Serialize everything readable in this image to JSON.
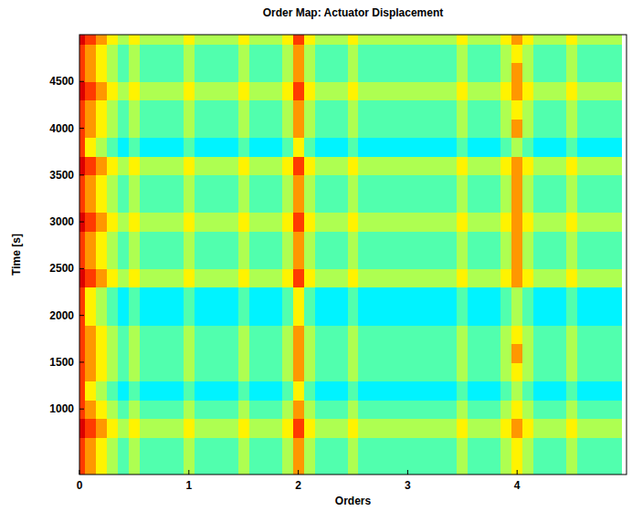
{
  "chart_data": {
    "type": "heatmap",
    "title": "Order Map: Actuator Displacement",
    "x_label": "Orders",
    "y_label": "Time [s]",
    "xlim": [
      0,
      5
    ],
    "ylim": [
      300,
      5000
    ],
    "xticks": [
      0,
      1,
      2,
      3,
      4
    ],
    "yticks": [
      1000,
      1500,
      2000,
      2500,
      3000,
      3500,
      4000,
      4500
    ],
    "zlim": [
      -1,
      10
    ],
    "x": [
      0,
      0.1,
      0.2,
      0.3,
      0.4,
      0.5,
      0.6,
      0.7,
      0.8,
      0.9,
      1,
      1.1,
      1.2,
      1.3,
      1.4,
      1.5,
      1.6,
      1.7,
      1.8,
      1.9,
      2,
      2.1,
      2.2,
      2.3,
      2.4,
      2.5,
      2.6,
      2.7,
      2.8,
      2.9,
      3,
      3.1,
      3.2,
      3.3,
      3.4,
      3.5,
      3.6,
      3.7,
      3.8,
      3.9,
      4,
      4.1,
      4.2,
      4.3,
      4.4,
      4.5,
      4.6,
      4.7,
      4.8,
      4.9
    ],
    "y": [
      400,
      600,
      800,
      1000,
      1200,
      1400,
      1600,
      1800,
      2000,
      2200,
      2400,
      2600,
      2800,
      3000,
      3200,
      3400,
      3600,
      3800,
      4000,
      4200,
      4400,
      4600,
      4800,
      5000
    ],
    "z": [
      [
        8,
        7,
        6,
        5,
        4,
        5,
        4,
        4,
        4,
        4,
        5,
        4,
        4,
        4,
        4,
        5,
        4,
        4,
        4,
        5,
        7,
        5,
        4,
        4,
        4,
        5,
        4,
        4,
        4,
        4,
        4,
        4,
        4,
        4,
        4,
        5,
        4,
        4,
        4,
        5,
        6,
        5,
        4,
        4,
        4,
        5,
        4,
        4,
        4,
        4
      ],
      [
        8,
        7,
        6,
        5,
        4,
        5,
        4,
        4,
        4,
        4,
        5,
        4,
        4,
        4,
        4,
        5,
        4,
        4,
        4,
        5,
        7,
        5,
        4,
        4,
        4,
        5,
        4,
        4,
        4,
        4,
        4,
        4,
        4,
        4,
        4,
        5,
        4,
        4,
        4,
        5,
        6,
        5,
        4,
        4,
        4,
        5,
        4,
        4,
        4,
        4
      ],
      [
        9,
        8,
        7,
        6,
        5,
        6,
        5,
        5,
        5,
        5,
        6,
        5,
        5,
        5,
        5,
        6,
        5,
        5,
        5,
        6,
        8,
        6,
        5,
        5,
        5,
        6,
        5,
        5,
        5,
        5,
        5,
        5,
        5,
        5,
        5,
        6,
        5,
        5,
        5,
        6,
        7,
        6,
        5,
        5,
        5,
        6,
        5,
        5,
        5,
        5
      ],
      [
        8,
        7,
        6,
        5,
        4,
        5,
        4,
        4,
        4,
        4,
        5,
        4,
        4,
        4,
        4,
        5,
        4,
        4,
        4,
        5,
        7,
        5,
        4,
        4,
        4,
        5,
        4,
        4,
        4,
        4,
        4,
        4,
        4,
        4,
        4,
        5,
        4,
        4,
        4,
        5,
        6,
        5,
        4,
        4,
        4,
        5,
        4,
        4,
        4,
        4
      ],
      [
        8,
        6,
        5,
        4,
        3,
        4,
        3,
        3,
        3,
        3,
        4,
        3,
        3,
        3,
        3,
        4,
        3,
        3,
        3,
        4,
        6,
        4,
        3,
        3,
        3,
        4,
        3,
        3,
        3,
        3,
        3,
        3,
        3,
        3,
        3,
        4,
        3,
        3,
        3,
        4,
        5,
        4,
        3,
        3,
        3,
        4,
        3,
        3,
        3,
        3
      ],
      [
        8,
        7,
        6,
        5,
        4,
        5,
        4,
        4,
        4,
        4,
        5,
        4,
        4,
        4,
        4,
        5,
        4,
        4,
        4,
        5,
        7,
        5,
        4,
        4,
        4,
        5,
        4,
        4,
        4,
        4,
        4,
        4,
        4,
        4,
        4,
        5,
        4,
        4,
        4,
        5,
        6,
        5,
        4,
        4,
        4,
        5,
        4,
        4,
        4,
        4
      ],
      [
        8,
        7,
        6,
        5,
        4,
        5,
        4,
        4,
        4,
        4,
        5,
        4,
        4,
        4,
        4,
        5,
        4,
        4,
        4,
        5,
        7,
        5,
        4,
        4,
        4,
        5,
        4,
        4,
        4,
        4,
        4,
        4,
        4,
        4,
        4,
        5,
        4,
        4,
        4,
        5,
        7,
        5,
        4,
        4,
        4,
        5,
        4,
        4,
        4,
        4
      ],
      [
        8,
        7,
        6,
        5,
        4,
        5,
        4,
        4,
        4,
        4,
        5,
        4,
        4,
        4,
        4,
        5,
        4,
        4,
        4,
        5,
        7,
        5,
        4,
        4,
        4,
        5,
        4,
        4,
        4,
        4,
        4,
        4,
        4,
        4,
        4,
        5,
        4,
        4,
        4,
        5,
        6,
        5,
        4,
        4,
        4,
        5,
        4,
        4,
        4,
        4
      ],
      [
        8,
        6,
        5,
        4,
        3,
        4,
        3,
        3,
        3,
        3,
        4,
        3,
        3,
        3,
        3,
        4,
        3,
        3,
        3,
        4,
        6,
        4,
        3,
        3,
        3,
        4,
        3,
        3,
        3,
        3,
        3,
        3,
        3,
        3,
        3,
        4,
        3,
        3,
        3,
        4,
        5,
        4,
        3,
        3,
        3,
        4,
        3,
        3,
        3,
        3
      ],
      [
        8,
        6,
        5,
        4,
        3,
        4,
        3,
        3,
        3,
        3,
        4,
        3,
        3,
        3,
        3,
        4,
        3,
        3,
        3,
        4,
        6,
        4,
        3,
        3,
        3,
        4,
        3,
        3,
        3,
        3,
        3,
        3,
        3,
        3,
        3,
        4,
        3,
        3,
        3,
        4,
        5,
        4,
        3,
        3,
        3,
        4,
        3,
        3,
        3,
        3
      ],
      [
        9,
        8,
        7,
        6,
        5,
        6,
        5,
        5,
        5,
        5,
        6,
        5,
        5,
        5,
        5,
        6,
        5,
        5,
        5,
        6,
        8,
        6,
        5,
        5,
        5,
        6,
        5,
        5,
        5,
        5,
        5,
        5,
        5,
        5,
        5,
        6,
        5,
        5,
        5,
        6,
        7,
        6,
        5,
        5,
        5,
        6,
        5,
        5,
        5,
        5
      ],
      [
        8,
        7,
        6,
        5,
        4,
        5,
        4,
        4,
        4,
        4,
        5,
        4,
        4,
        4,
        4,
        5,
        4,
        4,
        4,
        5,
        7,
        5,
        4,
        4,
        4,
        5,
        4,
        4,
        4,
        4,
        4,
        4,
        4,
        4,
        4,
        5,
        4,
        4,
        4,
        5,
        7,
        5,
        4,
        4,
        4,
        5,
        4,
        4,
        4,
        4
      ],
      [
        8,
        7,
        6,
        5,
        4,
        5,
        4,
        4,
        4,
        4,
        5,
        4,
        4,
        4,
        4,
        5,
        4,
        4,
        4,
        5,
        7,
        5,
        4,
        4,
        4,
        5,
        4,
        4,
        4,
        4,
        4,
        4,
        4,
        4,
        4,
        5,
        4,
        4,
        4,
        5,
        7,
        5,
        4,
        4,
        4,
        5,
        4,
        4,
        4,
        4
      ],
      [
        9,
        8,
        7,
        6,
        5,
        6,
        5,
        5,
        5,
        5,
        6,
        5,
        5,
        5,
        5,
        6,
        5,
        5,
        5,
        6,
        8,
        6,
        5,
        5,
        5,
        6,
        5,
        5,
        5,
        5,
        5,
        5,
        5,
        5,
        5,
        6,
        5,
        5,
        5,
        6,
        7,
        6,
        5,
        5,
        5,
        6,
        5,
        5,
        5,
        5
      ],
      [
        8,
        7,
        6,
        5,
        4,
        5,
        4,
        4,
        4,
        4,
        5,
        4,
        4,
        4,
        4,
        5,
        4,
        4,
        4,
        5,
        7,
        5,
        4,
        4,
        4,
        5,
        4,
        4,
        4,
        4,
        4,
        4,
        4,
        4,
        4,
        5,
        4,
        4,
        4,
        5,
        7,
        5,
        4,
        4,
        4,
        5,
        4,
        4,
        4,
        4
      ],
      [
        8,
        7,
        6,
        5,
        4,
        5,
        4,
        4,
        4,
        4,
        5,
        4,
        4,
        4,
        4,
        5,
        4,
        4,
        4,
        5,
        7,
        5,
        4,
        4,
        4,
        5,
        4,
        4,
        4,
        4,
        4,
        4,
        4,
        4,
        4,
        5,
        4,
        4,
        4,
        5,
        7,
        5,
        4,
        4,
        4,
        5,
        4,
        4,
        4,
        4
      ],
      [
        9,
        8,
        7,
        6,
        5,
        6,
        5,
        5,
        5,
        5,
        6,
        5,
        5,
        5,
        5,
        6,
        5,
        5,
        5,
        6,
        8,
        6,
        5,
        5,
        5,
        6,
        5,
        5,
        5,
        5,
        5,
        5,
        5,
        5,
        5,
        6,
        5,
        5,
        5,
        6,
        7,
        6,
        5,
        5,
        5,
        6,
        5,
        5,
        5,
        5
      ],
      [
        8,
        6,
        5,
        4,
        3,
        4,
        3,
        3,
        3,
        3,
        4,
        3,
        3,
        3,
        3,
        4,
        3,
        3,
        3,
        4,
        6,
        4,
        3,
        3,
        3,
        4,
        3,
        3,
        3,
        3,
        3,
        3,
        3,
        3,
        3,
        4,
        3,
        3,
        3,
        4,
        5,
        4,
        3,
        3,
        3,
        4,
        3,
        3,
        3,
        3
      ],
      [
        8,
        7,
        6,
        5,
        4,
        5,
        4,
        4,
        4,
        4,
        5,
        4,
        4,
        4,
        4,
        5,
        4,
        4,
        4,
        5,
        7,
        5,
        4,
        4,
        4,
        5,
        4,
        4,
        4,
        4,
        4,
        4,
        4,
        4,
        4,
        5,
        4,
        4,
        4,
        5,
        7,
        5,
        4,
        4,
        4,
        5,
        4,
        4,
        4,
        4
      ],
      [
        8,
        7,
        6,
        5,
        4,
        5,
        4,
        4,
        4,
        4,
        5,
        4,
        4,
        4,
        4,
        5,
        4,
        4,
        4,
        5,
        7,
        5,
        4,
        4,
        4,
        5,
        4,
        4,
        4,
        4,
        4,
        4,
        4,
        4,
        4,
        5,
        4,
        4,
        4,
        5,
        6,
        5,
        4,
        4,
        4,
        5,
        4,
        4,
        4,
        4
      ],
      [
        9,
        8,
        7,
        6,
        5,
        6,
        5,
        5,
        5,
        5,
        6,
        5,
        5,
        5,
        5,
        6,
        5,
        5,
        5,
        6,
        8,
        6,
        5,
        5,
        5,
        6,
        5,
        5,
        5,
        5,
        5,
        5,
        5,
        5,
        5,
        6,
        5,
        5,
        5,
        6,
        7,
        6,
        5,
        5,
        5,
        6,
        5,
        5,
        5,
        5
      ],
      [
        8,
        7,
        6,
        5,
        4,
        5,
        4,
        4,
        4,
        4,
        5,
        4,
        4,
        4,
        4,
        5,
        4,
        4,
        4,
        5,
        7,
        5,
        4,
        4,
        4,
        5,
        4,
        4,
        4,
        4,
        4,
        4,
        4,
        4,
        4,
        5,
        4,
        4,
        4,
        5,
        7,
        5,
        4,
        4,
        4,
        5,
        4,
        4,
        4,
        4
      ],
      [
        8,
        7,
        6,
        5,
        4,
        5,
        4,
        4,
        4,
        4,
        5,
        4,
        4,
        4,
        4,
        5,
        4,
        4,
        4,
        5,
        7,
        5,
        4,
        4,
        4,
        5,
        4,
        4,
        4,
        4,
        4,
        4,
        4,
        4,
        4,
        5,
        4,
        4,
        4,
        5,
        6,
        5,
        4,
        4,
        4,
        5,
        4,
        4,
        4,
        4
      ],
      [
        9,
        8,
        7,
        6,
        5,
        6,
        5,
        5,
        5,
        5,
        6,
        5,
        5,
        5,
        5,
        6,
        5,
        5,
        5,
        6,
        8,
        6,
        5,
        5,
        5,
        6,
        5,
        5,
        5,
        5,
        5,
        5,
        5,
        5,
        5,
        6,
        5,
        5,
        5,
        6,
        7,
        6,
        5,
        5,
        5,
        6,
        5,
        5,
        5,
        5
      ]
    ]
  }
}
